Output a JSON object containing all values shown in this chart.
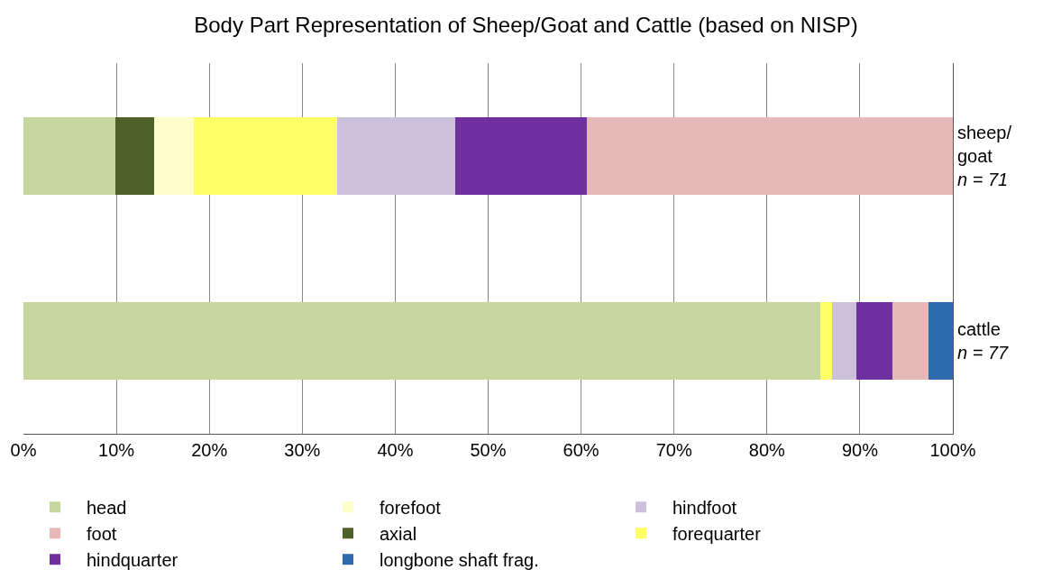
{
  "chart_data": {
    "type": "bar",
    "orientation": "horizontal",
    "stacked": true,
    "title": "Body Part Representation of Sheep/Goat and Cattle (based on NISP)",
    "categories": [
      "sheep/\ngoat\nn = 71",
      "cattle\nn = 77"
    ],
    "series": [
      {
        "name": "head",
        "color": "#c5d79f",
        "values": [
          9.9,
          85.7
        ]
      },
      {
        "name": "axial",
        "color": "#4e6128",
        "values": [
          4.2,
          null
        ]
      },
      {
        "name": "forefoot",
        "color": "#ffffcc",
        "values": [
          4.2,
          null
        ]
      },
      {
        "name": "forequarter",
        "color": "#ffff66",
        "values": [
          15.5,
          1.3
        ]
      },
      {
        "name": "hindfoot",
        "color": "#ccc1da",
        "values": [
          12.7,
          2.6
        ]
      },
      {
        "name": "hindquarter",
        "color": "#7030a0",
        "values": [
          14.1,
          3.9
        ]
      },
      {
        "name": "foot",
        "color": "#e6b9b8",
        "values": [
          39.4,
          3.9
        ]
      },
      {
        "name": "longbone shaft frag.",
        "color": "#2e6bad",
        "values": [
          null,
          2.6
        ]
      }
    ],
    "xlim": [
      0,
      100
    ],
    "xticks": [
      {
        "value": 0,
        "label": "0%"
      },
      {
        "value": 10,
        "label": "10%"
      },
      {
        "value": 20,
        "label": "20%"
      },
      {
        "value": 30,
        "label": "30%"
      },
      {
        "value": 40,
        "label": "40%"
      },
      {
        "value": 50,
        "label": "50%"
      },
      {
        "value": 60,
        "label": "60%"
      },
      {
        "value": 70,
        "label": "70%"
      },
      {
        "value": 80,
        "label": "80%"
      },
      {
        "value": 90,
        "label": "90%"
      },
      {
        "value": 100,
        "label": "100%"
      }
    ],
    "grid": "x",
    "legend": "bottom"
  }
}
